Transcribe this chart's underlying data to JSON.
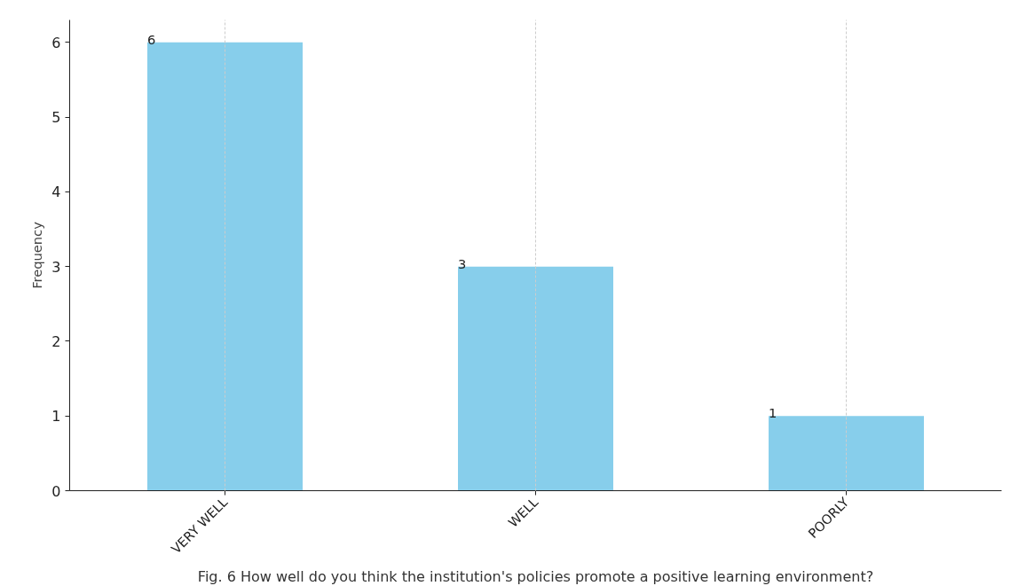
{
  "chart_data": {
    "type": "bar",
    "categories": [
      "VERY WELL",
      "WELL",
      "POORLY"
    ],
    "values": [
      6,
      3,
      1
    ],
    "color": "#87ceeb",
    "ylabel": "Frequency",
    "ylim": [
      0,
      6.3
    ],
    "yticks": [
      0,
      1,
      2,
      3,
      4,
      5,
      6
    ],
    "grid": "x",
    "data_labels": true,
    "annotations": [
      "Fig. 6 How well do you think the institution's policies promote a positive learning environment?"
    ]
  }
}
